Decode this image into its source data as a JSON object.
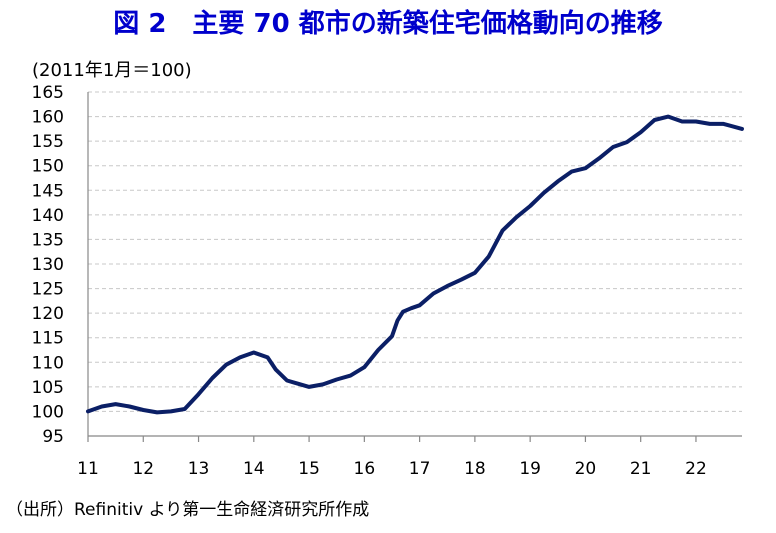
{
  "chart_data": {
    "type": "line",
    "title": "図 2　主要 70 都市の新築住宅価格動向の推移",
    "unit_label": "(2011年1月＝100)",
    "source": "（出所）Refinitiv より第一生命経済研究所作成",
    "ylim": [
      95,
      165
    ],
    "yticks": [
      95,
      100,
      105,
      110,
      115,
      120,
      125,
      130,
      135,
      140,
      145,
      150,
      155,
      160,
      165
    ],
    "xlim": [
      11,
      22.833
    ],
    "xticks": [
      11,
      12,
      13,
      14,
      15,
      16,
      17,
      18,
      19,
      20,
      21,
      22
    ],
    "xtick_labels": [
      "11",
      "12",
      "13",
      "14",
      "15",
      "16",
      "17",
      "18",
      "19",
      "20",
      "21",
      "22"
    ],
    "grid": true,
    "color": "#0b1f66",
    "series": [
      {
        "x": [
          11.0,
          11.25,
          11.5,
          11.75,
          12.0,
          12.25,
          12.5,
          12.75,
          13.0,
          13.25,
          13.5,
          13.75,
          14.0,
          14.25,
          14.4,
          14.6,
          14.75,
          15.0,
          15.25,
          15.5,
          15.75,
          16.0,
          16.25,
          16.5,
          16.6,
          16.7,
          16.85,
          17.0,
          17.25,
          17.5,
          17.75,
          18.0,
          18.25,
          18.5,
          18.75,
          19.0,
          19.25,
          19.5,
          19.75,
          20.0,
          20.25,
          20.5,
          20.75,
          21.0,
          21.25,
          21.5,
          21.75,
          22.0,
          22.25,
          22.5,
          22.833
        ],
        "y": [
          100,
          101,
          101.5,
          101,
          100.3,
          99.8,
          100,
          100.5,
          103.5,
          106.8,
          109.5,
          111,
          112,
          111,
          108.5,
          106.3,
          105.8,
          105,
          105.5,
          106.5,
          107.3,
          109,
          112.5,
          115.3,
          118.5,
          120.3,
          121,
          121.6,
          124,
          125.5,
          126.8,
          128.2,
          131.5,
          136.8,
          139.5,
          141.8,
          144.5,
          146.8,
          148.8,
          149.5,
          151.5,
          153.8,
          154.8,
          156.8,
          159.3,
          160,
          159,
          159,
          158.5,
          158.5,
          157.5
        ]
      }
    ]
  }
}
